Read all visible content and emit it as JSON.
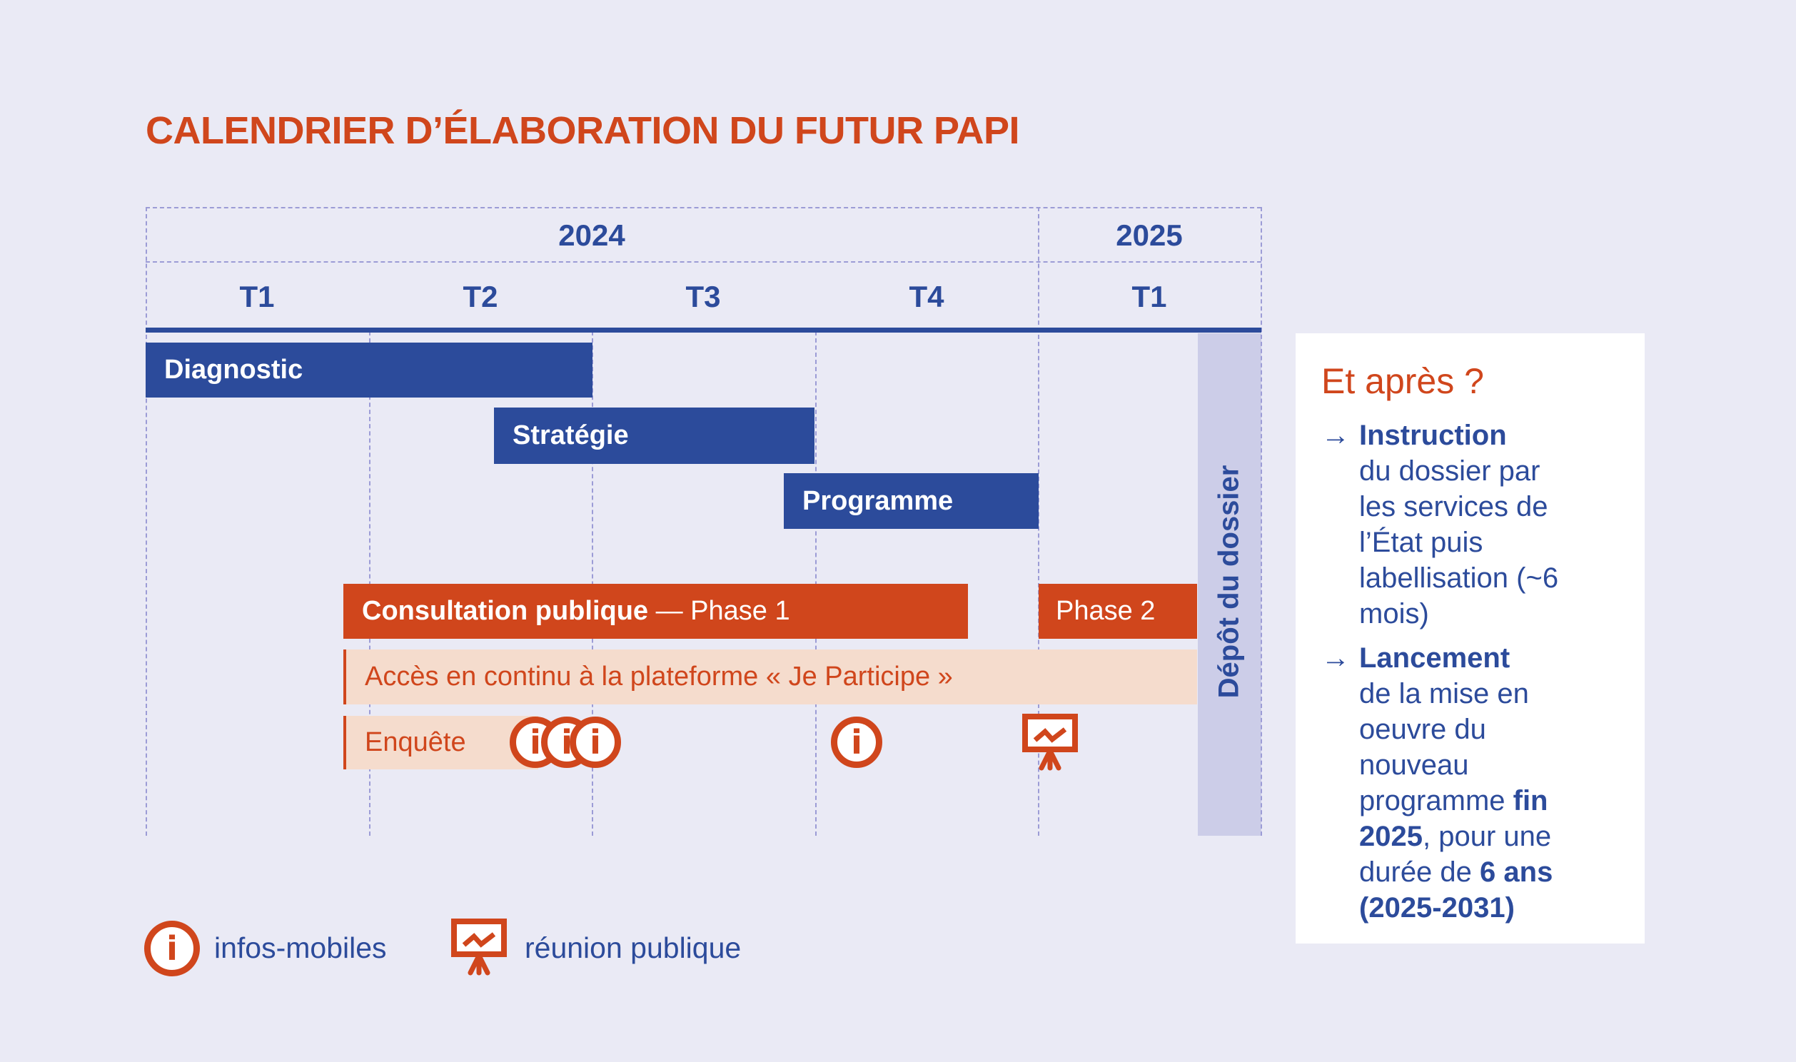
{
  "title": "CALENDRIER D’ÉLABORATION DU FUTUR PAPI",
  "years": [
    "2024",
    "2025"
  ],
  "quarters": [
    "T1",
    "T2",
    "T3",
    "T4",
    "T1"
  ],
  "bars": {
    "diagnostic": "Diagnostic",
    "strategie": "Stratégie",
    "programme": "Programme",
    "consultation_bold": "Consultation publique",
    "consultation_rest": " — Phase 1",
    "phase2": "Phase 2",
    "acces": "Accès en continu à la plateforme « Je Participe »",
    "enquete": "Enquête"
  },
  "depot": "Dépôt du dossier",
  "info_glyph": "i",
  "legend": {
    "infos": "infos-mobiles",
    "reunion": "réunion publique"
  },
  "after": {
    "title": "Et après ?",
    "arrow": "→",
    "item1_bold": "Instruction",
    "item1_text": "du dossier par les services de l’État puis labellisation (~6 mois)",
    "item2_bold": "Lancement",
    "item2_text1": "de la mise en oeuvre du nouveau programme ",
    "item2_bold2": "fin 2025",
    "item2_text2": ", pour une durée de ",
    "item2_bold3": "6 ans (2025-2031)"
  },
  "colors": {
    "blue": "#2c4b9b",
    "orange": "#d0461c",
    "peach": "#f5dccd",
    "background": "#eaeaf5"
  }
}
